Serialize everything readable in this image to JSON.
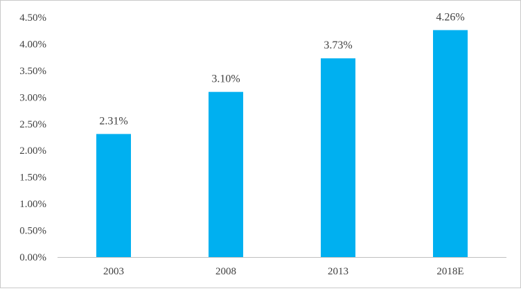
{
  "chart_data": {
    "type": "bar",
    "title": "",
    "xlabel": "",
    "ylabel": "",
    "categories": [
      "2003",
      "2008",
      "2013",
      "2018E"
    ],
    "values": [
      2.31,
      3.1,
      3.73,
      4.26
    ],
    "data_labels": [
      "2.31%",
      "3.10%",
      "3.73%",
      "4.26%"
    ],
    "ylim": [
      0,
      4.5
    ],
    "yticks": [
      0,
      0.5,
      1.0,
      1.5,
      2.0,
      2.5,
      3.0,
      3.5,
      4.0,
      4.5
    ],
    "ytick_labels": [
      "0.00%",
      "0.50%",
      "1.00%",
      "1.50%",
      "2.00%",
      "2.50%",
      "3.00%",
      "3.50%",
      "4.00%",
      "4.50%"
    ],
    "grid": false,
    "legend": "none",
    "colors": {
      "bar": "#00B0F0",
      "axis": "#bfbfbf",
      "text": "#404040"
    }
  }
}
